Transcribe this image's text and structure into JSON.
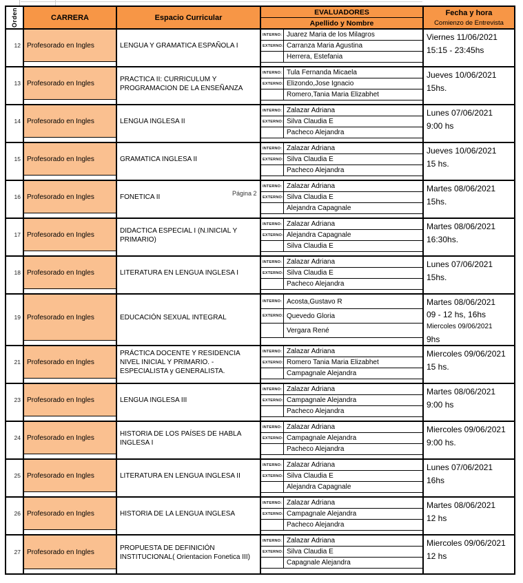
{
  "page_marker": "Página 2",
  "colors": {
    "header_orange": "#F79646",
    "carrera_peach": "#FAC090",
    "border": "#000000"
  },
  "header": {
    "orden": "Orden",
    "carrera": "CARRERA",
    "espacio": "Espacio Curricular",
    "evaluadores": "EVALUADORES",
    "apellido": "Apellido y Nombre",
    "fecha_line1": "Fecha y hora",
    "fecha_line2": "Comienzo de Entrevista"
  },
  "labels": {
    "interno": "INTERNO:",
    "externo": "EXTERNO:"
  },
  "rows": [
    {
      "orden": "12",
      "carrera": "Profesorado en Ingles",
      "espacio": "LENGUA Y GRAMATICA ESPAÑOLA I",
      "evaluadores": [
        "Juarez Maria de los Milagros",
        "Carranza Maria Agustina",
        "Herrera, Estefania"
      ],
      "fecha": [
        "Viernes 11/06/2021",
        "15:15 - 23:45hs"
      ]
    },
    {
      "orden": "13",
      "carrera": "Profesorado en Ingles",
      "espacio": "PRACTICA II: CURRICULUM Y PROGRAMACION DE LA ENSEÑANZA",
      "evaluadores": [
        "Tula Fernanda Micaela",
        "Elizondo,Jose Ignacio",
        "Romero,Tania Maria Elizabhet"
      ],
      "fecha": [
        "Jueves 10/06/2021",
        "15hs."
      ]
    },
    {
      "orden": "14",
      "carrera": "Profesorado en Ingles",
      "espacio": "LENGUA INGLESA II",
      "evaluadores": [
        "Zalazar Adriana",
        "Silva Claudia E",
        "Pacheco Alejandra"
      ],
      "fecha": [
        "Lunes 07/06/2021",
        "9:00 hs"
      ]
    },
    {
      "orden": "15",
      "carrera": "Profesorado en Ingles",
      "espacio": "GRAMATICA INGLESA II",
      "evaluadores": [
        "Zalazar Adriana",
        "Silva Claudia E",
        "Pacheco Alejandra"
      ],
      "fecha": [
        "Jueves 10/06/2021",
        "15 hs."
      ]
    },
    {
      "orden": "16",
      "carrera": "Profesorado en Ingles",
      "espacio": "FONETICA II",
      "evaluadores": [
        "Zalazar Adriana",
        "Silva Claudia E",
        "Alejandra Capagnale"
      ],
      "fecha": [
        "Martes 08/06/2021",
        "15hs."
      ]
    },
    {
      "orden": "17",
      "carrera": "Profesorado en Ingles",
      "espacio": "DIDACTICA ESPECIAL I (N.INICIAL Y PRIMARIO)",
      "evaluadores": [
        "Zalazar Adriana",
        "Alejandra Capagnale",
        "Silva Claudia E"
      ],
      "fecha": [
        "Martes 08/06/2021",
        "16:30hs."
      ]
    },
    {
      "orden": "18",
      "carrera": "Profesorado en Ingles",
      "espacio": "LITERATURA EN LENGUA INGLESA I",
      "evaluadores": [
        "Zalazar Adriana",
        "Silva Claudia E",
        "Pacheco Alejandra"
      ],
      "fecha": [
        "Lunes 07/06/2021",
        "15hs."
      ]
    },
    {
      "orden": "19",
      "carrera": "Profesorado en Ingles",
      "espacio": "EDUCACIÓN SEXUAL INTEGRAL",
      "evaluadores": [
        "Acosta,Gustavo R",
        "Quevedo Gloria",
        "Vergara René"
      ],
      "fecha": [
        "Martes 08/06/2021",
        "09 - 12 hs, 16hs",
        "Miercoles 09/06/2021",
        "9hs"
      ]
    },
    {
      "orden": "21",
      "carrera": "Profesorado en Ingles",
      "espacio": "PRÁCTICA DOCENTE Y RESIDENCIA NIVEL INICIAL Y PRIMARIO. - ESPECIALISTA y GENERALISTA.",
      "evaluadores": [
        "Zalazar Adriana",
        "Romero Tania Maria Elizabhet",
        "Campagnale Alejandra"
      ],
      "fecha": [
        "Miercoles 09/06/2021",
        "15 hs."
      ]
    },
    {
      "orden": "23",
      "carrera": "Profesorado en Ingles",
      "espacio": "LENGUA INGLESA III",
      "evaluadores": [
        "Zalazar Adriana",
        "Campagnale Alejandra",
        "Pacheco Alejandra"
      ],
      "fecha": [
        "Martes 08/06/2021",
        "9:00 hs"
      ]
    },
    {
      "orden": "24",
      "carrera": "Profesorado en Ingles",
      "espacio": "HISTORIA DE LOS PAÍSES DE HABLA INGLESA I",
      "evaluadores": [
        "Zalazar Adriana",
        "Campagnale Alejandra",
        "Pacheco Alejandra"
      ],
      "fecha": [
        "Miercoles 09/06/2021",
        "9:00 hs."
      ]
    },
    {
      "orden": "25",
      "carrera": "Profesorado en Ingles",
      "espacio": "LITERATURA EN LENGUA INGLESA II",
      "evaluadores": [
        "Zalazar Adriana",
        "Silva Claudia E",
        "Alejandra Capagnale"
      ],
      "fecha": [
        "Lunes 07/06/2021",
        "16hs"
      ]
    },
    {
      "orden": "26",
      "carrera": "Profesorado en Ingles",
      "espacio": "HISTORIA DE LA LENGUA INGLESA",
      "evaluadores": [
        "Zalazar Adriana",
        "Campagnale Alejandra",
        "Pacheco Alejandra"
      ],
      "fecha": [
        "Martes 08/06/2021",
        "12 hs"
      ]
    },
    {
      "orden": "27",
      "carrera": "Profesorado en Ingles",
      "espacio": "PROPUESTA DE DEFINICIÓN INSTITUCIONAL( Orientacion Fonetica III)",
      "evaluadores": [
        "Zalazar Adriana",
        "Silva Claudia E",
        "Capagnale Alejandra"
      ],
      "fecha": [
        "Miercoles 09/06/2021",
        "12 hs"
      ]
    }
  ]
}
